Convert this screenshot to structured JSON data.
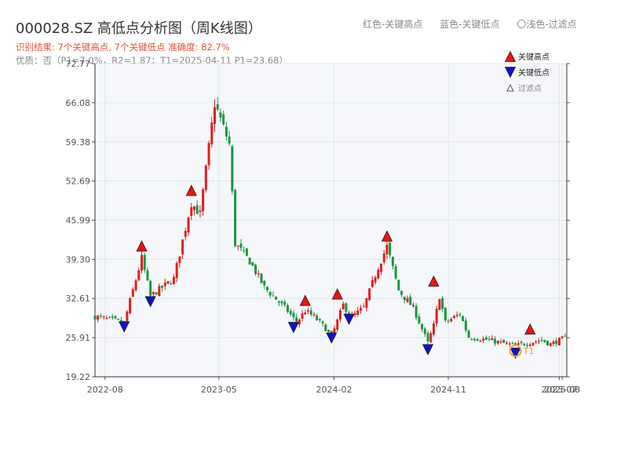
{
  "header": {
    "title": "000028.SZ 高低点分析图（周K线图）",
    "subtitle_result": "识别结果: 7个关键高点, 7个关键低点   准确度: 82.7%",
    "subtitle_quality": "优质：否（P1=7.0%，R2=1.87；T1=2025-04-11 P1=23.68）",
    "legend_red": "红色-关键高点",
    "legend_blue": "蓝色-关键低点",
    "legend_light": "〇浅色-过滤点"
  },
  "legend": {
    "high": "关键高点",
    "low": "关键低点",
    "filtered": "过滤点"
  },
  "colors": {
    "up": "#e01f1f",
    "down": "#1a9641",
    "high_marker": "#ee1111",
    "low_marker": "#1111cc",
    "t1_marker": "#f0a030",
    "plot_bg": "#f5f7fa",
    "grid": "#e2e6ec"
  },
  "chart_data": {
    "type": "candlestick",
    "x_start": "2022-07",
    "x_end": "2025-08",
    "xticks": [
      "2022-08",
      "2023-05",
      "2024-02",
      "2024-11",
      "2025-07",
      "2025-08"
    ],
    "ylim": [
      19.22,
      72.77
    ],
    "yticks": [
      "72.77",
      "66.08",
      "59.38",
      "52.69",
      "45.99",
      "39.30",
      "32.61",
      "25.91",
      "19.22"
    ],
    "log_scale": false,
    "grid": true,
    "legend_position": "top-right",
    "anchors": [
      [
        "2022-07-08",
        29.5
      ],
      [
        "2022-09-16",
        28.5
      ],
      [
        "2022-10-28",
        39.5
      ],
      [
        "2022-11-18",
        33.0
      ],
      [
        "2023-01-13",
        36.0
      ],
      [
        "2023-02-24",
        49.0
      ],
      [
        "2023-03-17",
        47.0
      ],
      [
        "2023-04-21",
        66.0
      ],
      [
        "2023-05-26",
        59.0
      ],
      [
        "2023-06-09",
        42.0
      ],
      [
        "2023-07-14",
        39.0
      ],
      [
        "2023-08-18",
        34.5
      ],
      [
        "2023-10-13",
        30.5
      ],
      [
        "2023-11-03",
        28.5
      ],
      [
        "2023-11-24",
        30.5
      ],
      [
        "2023-12-15",
        29.5
      ],
      [
        "2024-01-12",
        27.5
      ],
      [
        "2024-01-26",
        26.0
      ],
      [
        "2024-02-23",
        31.5
      ],
      [
        "2024-03-15",
        29.5
      ],
      [
        "2024-04-12",
        31.0
      ],
      [
        "2024-05-17",
        38.0
      ],
      [
        "2024-06-07",
        41.5
      ],
      [
        "2024-07-05",
        34.0
      ],
      [
        "2024-08-09",
        31.0
      ],
      [
        "2024-09-13",
        25.0
      ],
      [
        "2024-09-27",
        28.0
      ],
      [
        "2024-10-11",
        33.0
      ],
      [
        "2024-10-25",
        28.5
      ],
      [
        "2024-11-29",
        30.0
      ],
      [
        "2024-12-20",
        26.0
      ],
      [
        "2025-02-07",
        25.5
      ],
      [
        "2025-04-11",
        24.5
      ],
      [
        "2025-05-09",
        25.0
      ],
      [
        "2025-06-13",
        25.5
      ],
      [
        "2025-07-04",
        24.8
      ],
      [
        "2025-08-08",
        25.9
      ]
    ],
    "key_highs": [
      {
        "date": "2022-10-28",
        "value": 40.5
      },
      {
        "date": "2023-02-24",
        "value": 50.0
      },
      {
        "date": "2023-11-24",
        "value": 31.2
      },
      {
        "date": "2024-02-09",
        "value": 32.3
      },
      {
        "date": "2024-06-07",
        "value": 42.2
      },
      {
        "date": "2024-09-27",
        "value": 34.5
      },
      {
        "date": "2025-05-16",
        "value": 26.3
      }
    ],
    "key_lows": [
      {
        "date": "2022-09-16",
        "value": 27.5
      },
      {
        "date": "2022-11-18",
        "value": 31.8
      },
      {
        "date": "2023-10-27",
        "value": 27.4
      },
      {
        "date": "2024-01-26",
        "value": 25.6
      },
      {
        "date": "2024-03-08",
        "value": 28.8
      },
      {
        "date": "2024-09-13",
        "value": 23.6
      },
      {
        "date": "2025-04-11",
        "value": 23.0
      }
    ],
    "t1": {
      "date": "2025-04-11",
      "value": 23.68,
      "label": "T1"
    }
  }
}
